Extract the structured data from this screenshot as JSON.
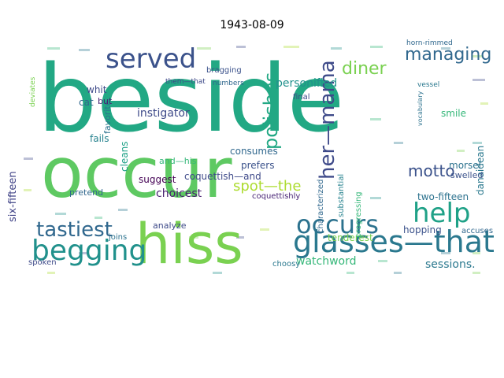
{
  "title": "1943-08-09",
  "words": [
    {
      "text": "beside",
      "color": "#22a884"
    },
    {
      "text": "occur",
      "color": "#5ec962"
    },
    {
      "text": "hiss",
      "color": "#7ad151"
    },
    {
      "text": "glasses—that",
      "color": "#2a788e"
    },
    {
      "text": "begging",
      "color": "#21918c"
    },
    {
      "text": "occurs",
      "color": "#2c728e"
    },
    {
      "text": "served",
      "color": "#3b528b"
    },
    {
      "text": "help",
      "color": "#1fa187"
    },
    {
      "text": "tastiest",
      "color": "#31688e"
    },
    {
      "text": "her—mama",
      "color": "#3e4a89"
    },
    {
      "text": "polishes",
      "color": "#22a884"
    },
    {
      "text": "managing",
      "color": "#31688e"
    },
    {
      "text": "diner",
      "color": "#7ad151"
    },
    {
      "text": "motto",
      "color": "#3b528b"
    },
    {
      "text": "spot—the",
      "color": "#addc30"
    },
    {
      "text": "personified",
      "color": "#21918c"
    },
    {
      "text": "instigator",
      "color": "#3e4a89"
    },
    {
      "text": "choicest",
      "color": "#481f70"
    },
    {
      "text": "watchword",
      "color": "#35b779"
    },
    {
      "text": "sessions.",
      "color": "#2a788e"
    },
    {
      "text": "six-fifteen",
      "color": "#404387"
    },
    {
      "text": "coquettish—and",
      "color": "#3e4a89"
    },
    {
      "text": "two-fifteen",
      "color": "#2c728e"
    },
    {
      "text": "tenderest",
      "color": "#7ad151"
    },
    {
      "text": "hopping",
      "color": "#3b528b"
    },
    {
      "text": "consumes",
      "color": "#31688e"
    },
    {
      "text": "suggest",
      "color": "#440154"
    },
    {
      "text": "prefers",
      "color": "#3b528b"
    },
    {
      "text": "cleans",
      "color": "#1fa187"
    },
    {
      "text": "fails",
      "color": "#26828e"
    },
    {
      "text": "favorite",
      "color": "#2c728e"
    },
    {
      "text": "and—his",
      "color": "#35b779"
    },
    {
      "text": "cat",
      "color": "#31688e"
    },
    {
      "text": "but",
      "color": "#482475"
    },
    {
      "text": "whit",
      "color": "#3e4a89"
    },
    {
      "text": "smile",
      "color": "#35b779"
    },
    {
      "text": "danaidean",
      "color": "#2a788e"
    },
    {
      "text": "morsel",
      "color": "#2c728e"
    },
    {
      "text": "swelled",
      "color": "#3b528b"
    },
    {
      "text": "pretend",
      "color": "#31688e"
    },
    {
      "text": "analyze",
      "color": "#3e4a89"
    },
    {
      "text": "joins",
      "color": "#2c728e"
    },
    {
      "text": "spoken",
      "color": "#3e4a89"
    },
    {
      "text": "choosy",
      "color": "#2a788e"
    },
    {
      "text": "accuses",
      "color": "#31688e"
    },
    {
      "text": "progressing",
      "color": "#35b779"
    },
    {
      "text": "substantial",
      "color": "#26828e"
    },
    {
      "text": "characterized",
      "color": "#31688e"
    },
    {
      "text": "coquettishly",
      "color": "#482475"
    },
    {
      "text": "final",
      "color": "#3e4a89"
    },
    {
      "text": "bragging",
      "color": "#3b528b"
    },
    {
      "text": "them—that",
      "color": "#3e4a89"
    },
    {
      "text": "numbers",
      "color": "#31688e"
    },
    {
      "text": "vessel",
      "color": "#2a788e"
    },
    {
      "text": "vocabulary",
      "color": "#2c728e"
    },
    {
      "text": "horn-rimmed",
      "color": "#31688e"
    },
    {
      "text": "deviates",
      "color": "#7ad151"
    }
  ]
}
